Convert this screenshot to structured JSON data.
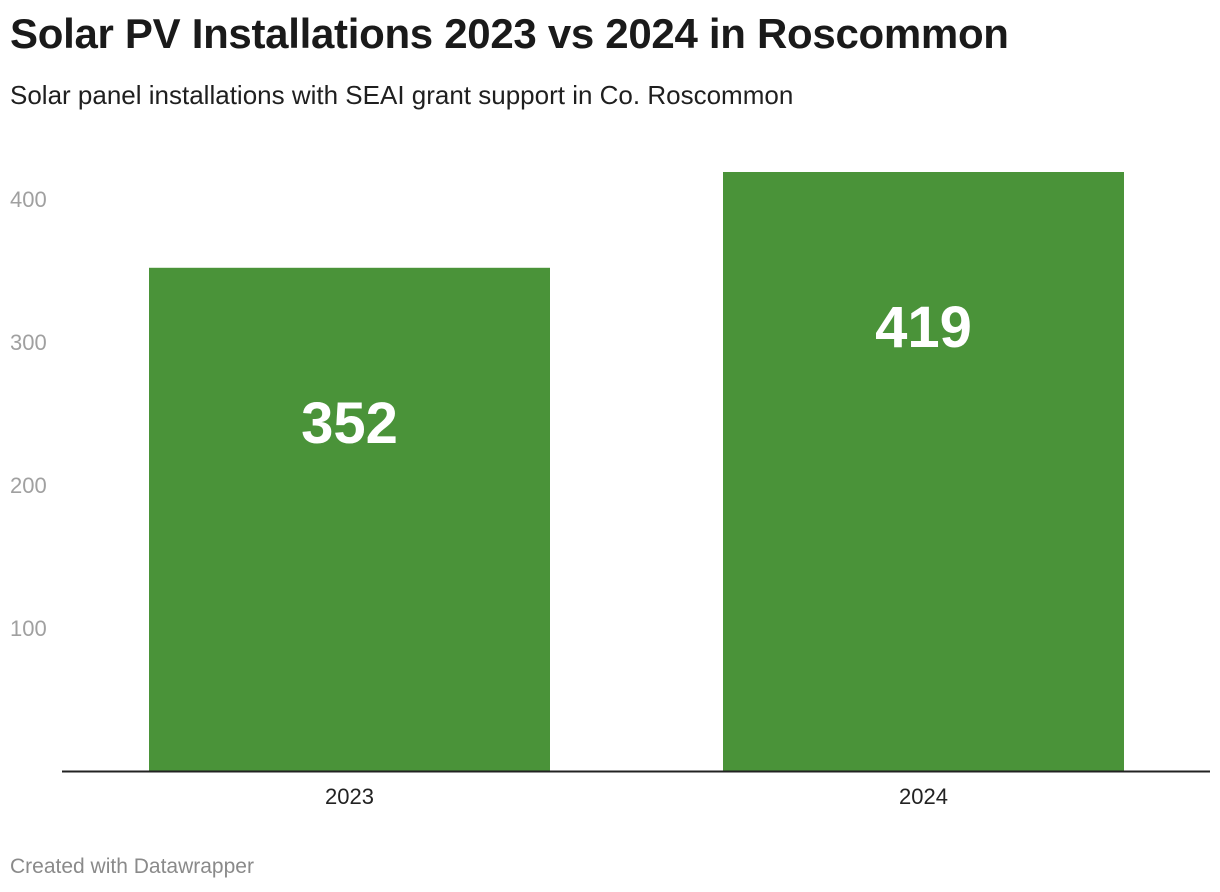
{
  "header": {
    "title": "Solar PV Installations 2023 vs 2024 in Roscommon",
    "subtitle": "Solar panel installations with SEAI grant support in Co. Roscommon"
  },
  "footer": {
    "credit": "Created with Datawrapper"
  },
  "colors": {
    "bar": "#4a9339",
    "axis_label": "#a0a0a0",
    "category_label": "#222222",
    "value_label": "#ffffff",
    "baseline": "#222222"
  },
  "chart_data": {
    "type": "bar",
    "categories": [
      "2023",
      "2024"
    ],
    "values": [
      352,
      419
    ],
    "yticks": [
      100,
      200,
      300,
      400
    ],
    "ylim": [
      0,
      419
    ],
    "grid": false,
    "legend": "none"
  }
}
